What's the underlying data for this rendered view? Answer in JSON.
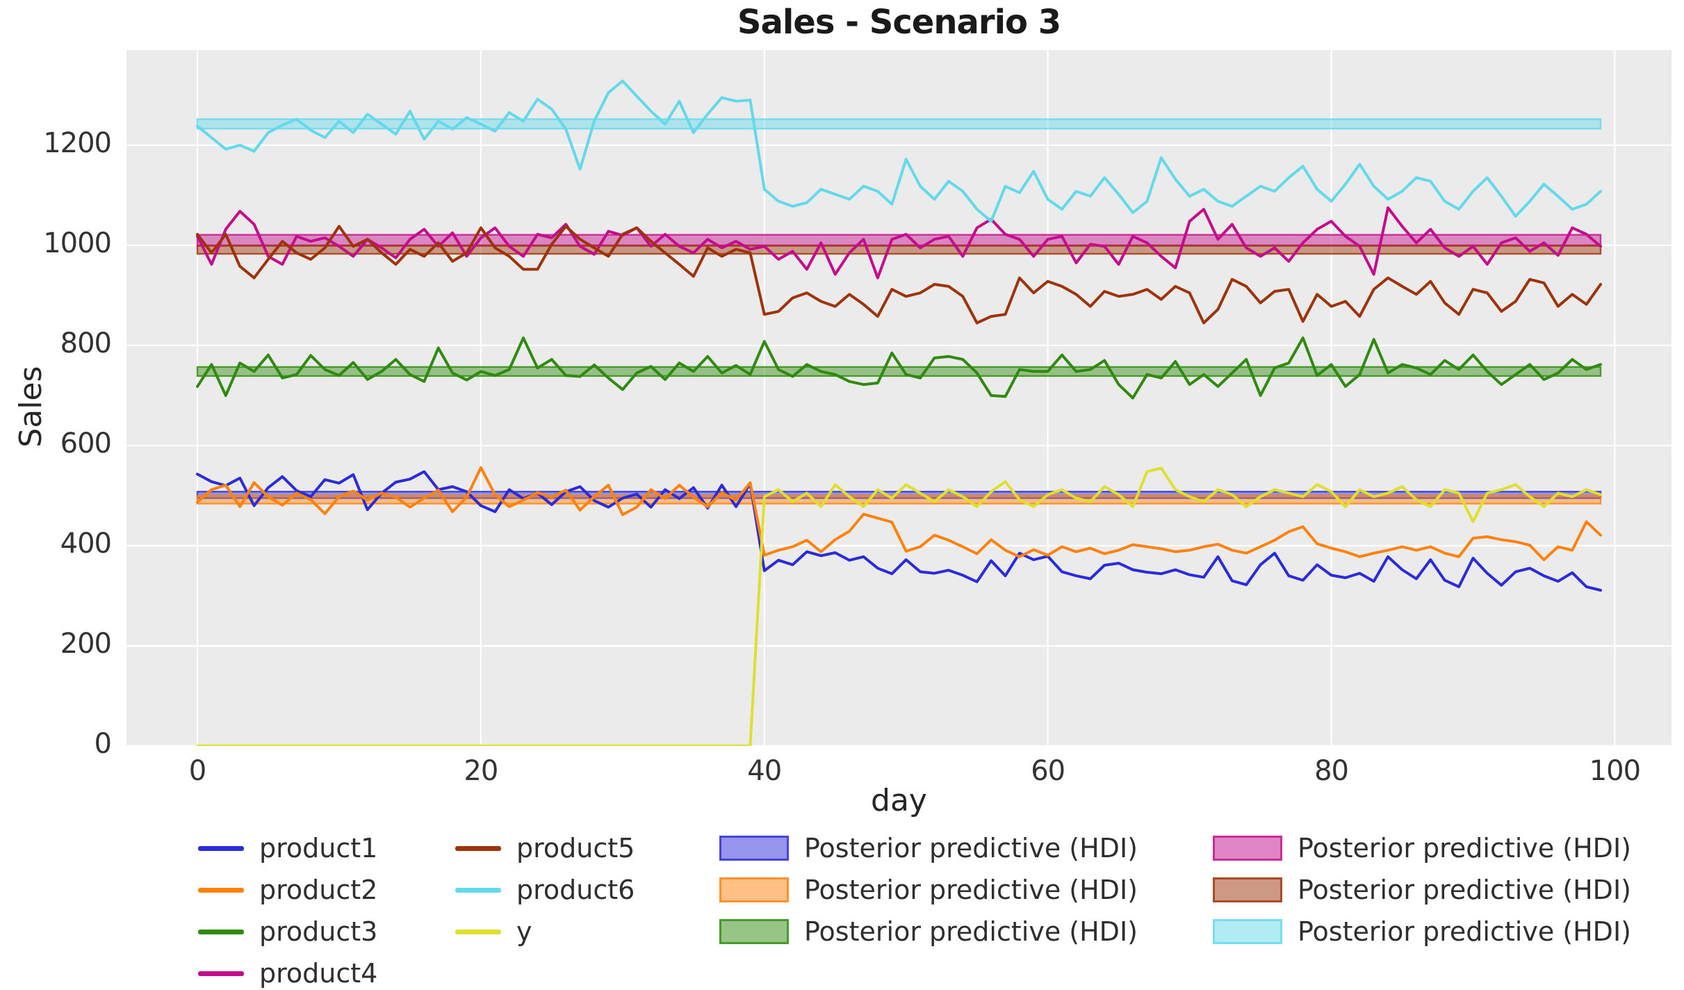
{
  "chart_data": {
    "type": "line",
    "title": "Sales - Scenario 3",
    "xlabel": "day",
    "ylabel": "Sales",
    "xlim": [
      -5,
      104
    ],
    "ylim": [
      0,
      1390
    ],
    "xticks": [
      0,
      20,
      40,
      60,
      80,
      100
    ],
    "yticks": [
      0,
      200,
      400,
      600,
      800,
      1000,
      1200
    ],
    "grid": true,
    "plot_bg": "#ebebeb",
    "grid_color": "#ffffff",
    "x_note": "x = day index 0..99",
    "series": [
      {
        "name": "product1",
        "color": "#2b2bd9",
        "values": [
          543,
          528,
          520,
          535,
          480,
          516,
          538,
          510,
          498,
          532,
          525,
          542,
          472,
          505,
          527,
          533,
          548,
          512,
          518,
          508,
          480,
          468,
          512,
          494,
          505,
          482,
          508,
          518,
          490,
          477,
          495,
          503,
          477,
          512,
          494,
          516,
          475,
          521,
          478,
          524,
          350,
          371,
          362,
          388,
          380,
          386,
          371,
          378,
          355,
          344,
          372,
          348,
          345,
          351,
          341,
          328,
          370,
          340,
          385,
          372,
          379,
          348,
          340,
          334,
          361,
          365,
          352,
          347,
          344,
          352,
          342,
          337,
          378,
          330,
          322,
          362,
          385,
          340,
          331,
          362,
          341,
          336,
          345,
          329,
          378,
          352,
          334,
          372,
          331,
          318,
          375,
          345,
          321,
          348,
          355,
          340,
          329,
          346,
          318,
          311
        ]
      },
      {
        "name": "product2",
        "color": "#ff820e",
        "values": [
          487,
          512,
          521,
          478,
          526,
          498,
          481,
          505,
          492,
          464,
          498,
          509,
          491,
          505,
          497,
          477,
          495,
          511,
          468,
          497,
          556,
          502,
          478,
          491,
          506,
          497,
          511,
          471,
          498,
          521,
          462,
          477,
          512,
          494,
          521,
          497,
          478,
          506,
          491,
          526,
          381,
          391,
          398,
          411,
          388,
          412,
          429,
          463,
          455,
          447,
          389,
          398,
          421,
          411,
          398,
          384,
          412,
          391,
          378,
          392,
          381,
          398,
          388,
          395,
          384,
          391,
          402,
          398,
          394,
          388,
          391,
          398,
          403,
          391,
          385,
          398,
          411,
          428,
          438,
          404,
          395,
          388,
          378,
          385,
          391,
          398,
          391,
          398,
          385,
          378,
          415,
          418,
          412,
          408,
          401,
          372,
          398,
          391,
          448,
          421
        ]
      },
      {
        "name": "product3",
        "color": "#2e8b0e",
        "values": [
          718,
          762,
          700,
          765,
          748,
          781,
          735,
          742,
          780,
          752,
          740,
          766,
          732,
          748,
          772,
          742,
          728,
          795,
          745,
          731,
          748,
          740,
          752,
          815,
          755,
          772,
          740,
          738,
          761,
          735,
          712,
          745,
          758,
          732,
          765,
          748,
          778,
          745,
          760,
          742,
          808,
          752,
          738,
          762,
          748,
          742,
          728,
          722,
          725,
          785,
          742,
          735,
          775,
          778,
          772,
          745,
          700,
          698,
          752,
          748,
          748,
          781,
          748,
          752,
          770,
          722,
          695,
          742,
          735,
          768,
          722,
          742,
          718,
          745,
          772,
          700,
          755,
          765,
          815,
          740,
          762,
          718,
          742,
          812,
          745,
          762,
          755,
          742,
          770,
          752,
          781,
          748,
          722,
          742,
          762,
          732,
          745,
          772,
          752,
          762
        ]
      },
      {
        "name": "product4",
        "color": "#c40d8c",
        "values": [
          1018,
          962,
          1032,
          1068,
          1042,
          978,
          962,
          1018,
          1008,
          1015,
          998,
          978,
          1012,
          995,
          975,
          1012,
          1032,
          998,
          1025,
          978,
          1015,
          1035,
          998,
          978,
          1022,
          1015,
          1042,
          998,
          982,
          1028,
          1020,
          1035,
          998,
          1022,
          998,
          985,
          1012,
          995,
          1008,
          992,
          998,
          972,
          988,
          952,
          1005,
          942,
          985,
          1012,
          935,
          1012,
          1022,
          995,
          1012,
          1018,
          978,
          1035,
          1052,
          1022,
          1012,
          978,
          1012,
          1018,
          965,
          1002,
          998,
          962,
          1018,
          1005,
          978,
          955,
          1048,
          1072,
          1012,
          1042,
          995,
          978,
          995,
          968,
          1005,
          1032,
          1048,
          1018,
          998,
          942,
          1075,
          1038,
          1005,
          1032,
          995,
          978,
          998,
          962,
          1005,
          1015,
          988,
          1005,
          980,
          1035,
          1022,
          998
        ]
      },
      {
        "name": "product5",
        "color": "#9e3309",
        "values": [
          1022,
          985,
          1022,
          958,
          935,
          972,
          1008,
          985,
          972,
          995,
          1038,
          998,
          1012,
          985,
          962,
          992,
          978,
          1005,
          968,
          985,
          1035,
          995,
          978,
          952,
          952,
          1002,
          1038,
          1012,
          995,
          978,
          1022,
          1035,
          1008,
          985,
          962,
          938,
          995,
          978,
          992,
          985,
          862,
          868,
          895,
          905,
          888,
          878,
          902,
          882,
          858,
          912,
          898,
          905,
          922,
          918,
          898,
          845,
          858,
          862,
          935,
          905,
          928,
          918,
          902,
          878,
          908,
          898,
          902,
          912,
          892,
          918,
          905,
          845,
          872,
          932,
          918,
          885,
          908,
          912,
          848,
          902,
          878,
          888,
          858,
          912,
          935,
          918,
          902,
          928,
          885,
          862,
          912,
          905,
          868,
          888,
          932,
          925,
          878,
          902,
          882,
          922
        ]
      },
      {
        "name": "product6",
        "color": "#63d9ec",
        "values": [
          1238,
          1215,
          1192,
          1200,
          1188,
          1225,
          1240,
          1252,
          1230,
          1215,
          1248,
          1225,
          1262,
          1242,
          1222,
          1268,
          1212,
          1248,
          1232,
          1255,
          1242,
          1228,
          1265,
          1248,
          1292,
          1272,
          1232,
          1152,
          1248,
          1305,
          1328,
          1298,
          1268,
          1242,
          1288,
          1225,
          1262,
          1295,
          1288,
          1290,
          1112,
          1088,
          1078,
          1085,
          1112,
          1102,
          1092,
          1118,
          1108,
          1082,
          1172,
          1118,
          1092,
          1128,
          1108,
          1072,
          1048,
          1118,
          1105,
          1148,
          1092,
          1072,
          1108,
          1098,
          1135,
          1102,
          1065,
          1088,
          1175,
          1132,
          1098,
          1112,
          1088,
          1078,
          1098,
          1118,
          1108,
          1135,
          1158,
          1112,
          1088,
          1122,
          1162,
          1118,
          1092,
          1108,
          1135,
          1128,
          1088,
          1072,
          1108,
          1135,
          1098,
          1058,
          1088,
          1122,
          1098,
          1072,
          1082,
          1108
        ]
      },
      {
        "name": "y",
        "color": "#dfdf30",
        "values": [
          0,
          0,
          0,
          0,
          0,
          0,
          0,
          0,
          0,
          0,
          0,
          0,
          0,
          0,
          0,
          0,
          0,
          0,
          0,
          0,
          0,
          0,
          0,
          0,
          0,
          0,
          0,
          0,
          0,
          0,
          0,
          0,
          0,
          0,
          0,
          0,
          0,
          0,
          0,
          0,
          498,
          512,
          488,
          505,
          478,
          522,
          498,
          478,
          512,
          495,
          522,
          505,
          488,
          512,
          498,
          478,
          508,
          528,
          492,
          478,
          502,
          512,
          495,
          488,
          518,
          502,
          478,
          548,
          555,
          512,
          498,
          488,
          512,
          502,
          478,
          498,
          512,
          505,
          498,
          522,
          508,
          478,
          512,
          498,
          505,
          518,
          492,
          478,
          512,
          505,
          448,
          505,
          512,
          522,
          498,
          478,
          505,
          498,
          512,
          502
        ]
      }
    ],
    "hdi_bands": [
      {
        "for": "product1",
        "label": "Posterior predictive (HDI)",
        "color": "#2b2bd9",
        "lo": 495,
        "hi": 508
      },
      {
        "for": "product2",
        "label": "Posterior predictive (HDI)",
        "color": "#ff820e",
        "lo": 484,
        "hi": 500
      },
      {
        "for": "product3",
        "label": "Posterior predictive (HDI)",
        "color": "#2e8b0e",
        "lo": 739,
        "hi": 757
      },
      {
        "for": "product4",
        "label": "Posterior predictive (HDI)",
        "color": "#c40d8c",
        "lo": 1000,
        "hi": 1021
      },
      {
        "for": "product5",
        "label": "Posterior predictive (HDI)",
        "color": "#9e3309",
        "lo": 983,
        "hi": 999
      },
      {
        "for": "product6",
        "label": "Posterior predictive (HDI)",
        "color": "#63d9ec",
        "lo": 1233,
        "hi": 1252
      }
    ]
  },
  "legend": {
    "columns": [
      {
        "type": "line",
        "items": [
          {
            "label": "product1",
            "color": "#2b2bd9"
          },
          {
            "label": "product2",
            "color": "#ff820e"
          },
          {
            "label": "product3",
            "color": "#2e8b0e"
          },
          {
            "label": "product4",
            "color": "#c40d8c"
          }
        ]
      },
      {
        "type": "line",
        "items": [
          {
            "label": "product5",
            "color": "#9e3309"
          },
          {
            "label": "product6",
            "color": "#63d9ec"
          },
          {
            "label": "y",
            "color": "#dfdf30"
          }
        ]
      },
      {
        "type": "patch",
        "items": [
          {
            "label": "Posterior predictive (HDI)",
            "color": "#2b2bd9"
          },
          {
            "label": "Posterior predictive (HDI)",
            "color": "#ff820e"
          },
          {
            "label": "Posterior predictive (HDI)",
            "color": "#2e8b0e"
          }
        ]
      },
      {
        "type": "patch",
        "items": [
          {
            "label": "Posterior predictive (HDI)",
            "color": "#c40d8c"
          },
          {
            "label": "Posterior predictive (HDI)",
            "color": "#9e3309"
          },
          {
            "label": "Posterior predictive (HDI)",
            "color": "#63d9ec"
          }
        ]
      }
    ]
  }
}
